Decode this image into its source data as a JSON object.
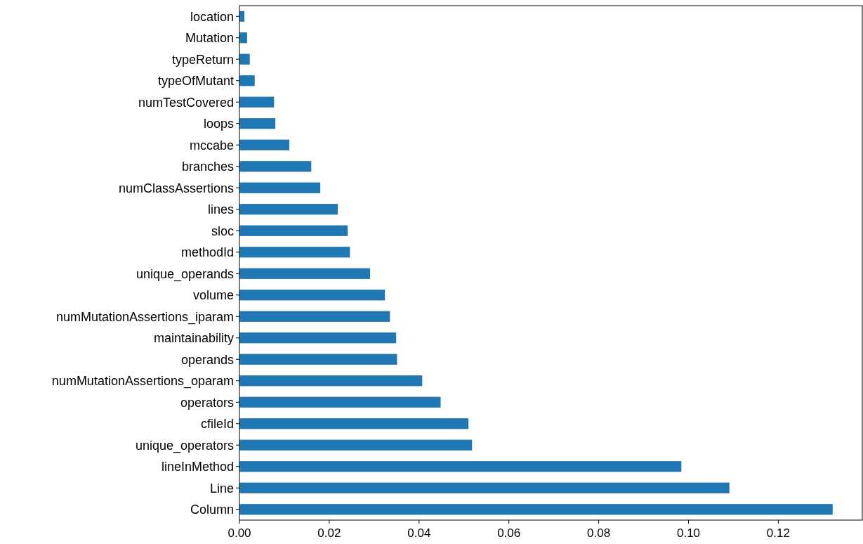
{
  "chart_data": {
    "type": "bar",
    "orientation": "horizontal",
    "categories": [
      "location",
      "Mutation",
      "typeReturn",
      "typeOfMutant",
      "numTestCovered",
      "loops",
      "mccabe",
      "branches",
      "numClassAssertions",
      "lines",
      "sloc",
      "methodId",
      "unique_operands",
      "volume",
      "numMutationAssertions_iparam",
      "maintainability",
      "operands",
      "numMutationAssertions_oparam",
      "operators",
      "cfileId",
      "unique_operators",
      "lineInMethod",
      "Line",
      "Column"
    ],
    "values": [
      0.0011,
      0.0017,
      0.0023,
      0.0034,
      0.0077,
      0.008,
      0.0111,
      0.016,
      0.018,
      0.0219,
      0.0241,
      0.0246,
      0.0291,
      0.0324,
      0.0335,
      0.0349,
      0.0351,
      0.0407,
      0.0448,
      0.051,
      0.0518,
      0.0984,
      0.1091,
      0.1321
    ],
    "color": "#1f77b4",
    "xlim": [
      0,
      0.1387
    ],
    "xticks": [
      {
        "value": 0,
        "label": "0.00"
      },
      {
        "value": 0.02,
        "label": "0.02"
      },
      {
        "value": 0.04,
        "label": "0.04"
      },
      {
        "value": 0.06,
        "label": "0.06"
      },
      {
        "value": 0.08,
        "label": "0.08"
      },
      {
        "value": 0.1,
        "label": "0.10"
      },
      {
        "value": 0.12,
        "label": "0.12"
      }
    ],
    "grid": false
  }
}
